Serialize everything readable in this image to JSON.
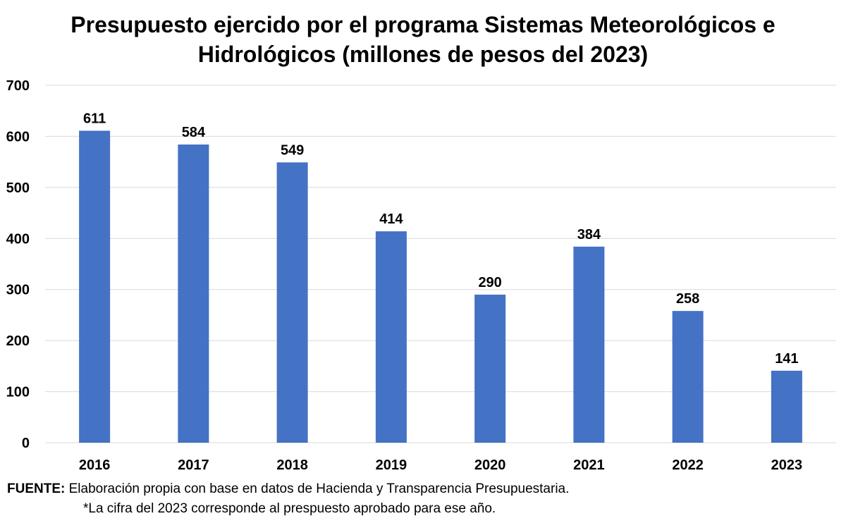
{
  "title": {
    "line1_regular": "Presupuesto ejercido por el programa ",
    "line1_bold": "Sistemas Meteorológicos e",
    "line2_bold": "Hidrológicos (millones de pesos del 2023)"
  },
  "footer": {
    "source_label": "FUENTE:",
    "source_text": " Elaboración propia con base en datos de Hacienda y Transparencia Presupuestaria.",
    "note": "*La cifra del 2023 corresponde al prespuesto aprobado para ese año."
  },
  "colors": {
    "bar": "#4472C4",
    "grid": "#D9D9D9"
  },
  "chart_data": {
    "type": "bar",
    "title": "Presupuesto ejercido por el programa Sistemas Meteorológicos e Hidrológicos (millones de pesos del 2023)",
    "categories": [
      "2016",
      "2017",
      "2018",
      "2019",
      "2020",
      "2021",
      "2022",
      "2023"
    ],
    "values": [
      611,
      584,
      549,
      414,
      290,
      384,
      258,
      141
    ],
    "data_labels": [
      "611",
      "584",
      "549",
      "414",
      "290",
      "384",
      "258",
      "141"
    ],
    "y_ticks": [
      "0",
      "100",
      "200",
      "300",
      "400",
      "500",
      "600",
      "700"
    ],
    "ylim": [
      0,
      700
    ],
    "grid": true,
    "legend": "none",
    "xlabel": "",
    "ylabel": ""
  }
}
